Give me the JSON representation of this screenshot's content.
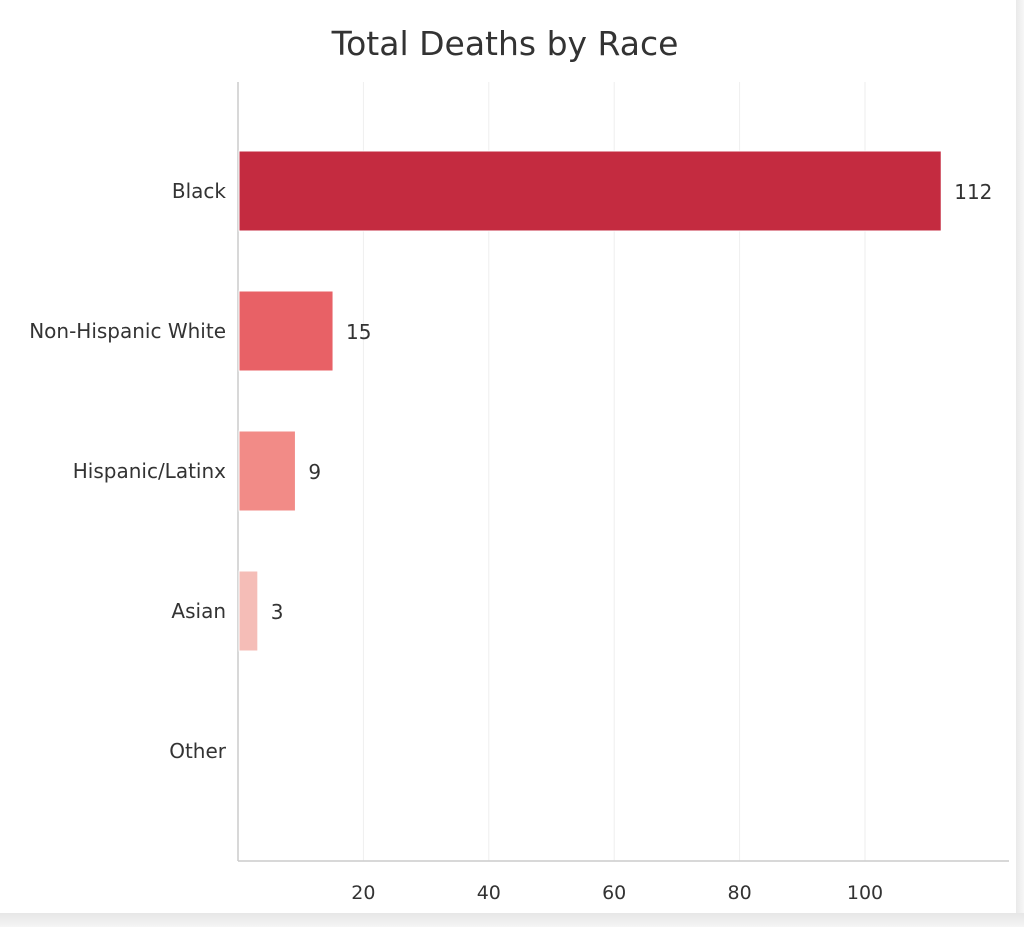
{
  "chart_data": {
    "type": "bar",
    "orientation": "horizontal",
    "title": "Total Deaths by Race",
    "xlabel": "",
    "ylabel": "",
    "categories": [
      "Black",
      "Non-Hispanic White",
      "Hispanic/Latinx",
      "Asian",
      "Other"
    ],
    "values": [
      112,
      15,
      9,
      3,
      0
    ],
    "value_labels": [
      "112",
      "15",
      "9",
      "3",
      ""
    ],
    "bar_colors": [
      "#c42b40",
      "#e86166",
      "#f28b87",
      "#f5bdb7",
      "#f5d6d3"
    ],
    "xlim": [
      0,
      124
    ],
    "xticks": [
      20,
      40,
      60,
      80,
      100
    ],
    "grid": true,
    "legend": "none"
  }
}
